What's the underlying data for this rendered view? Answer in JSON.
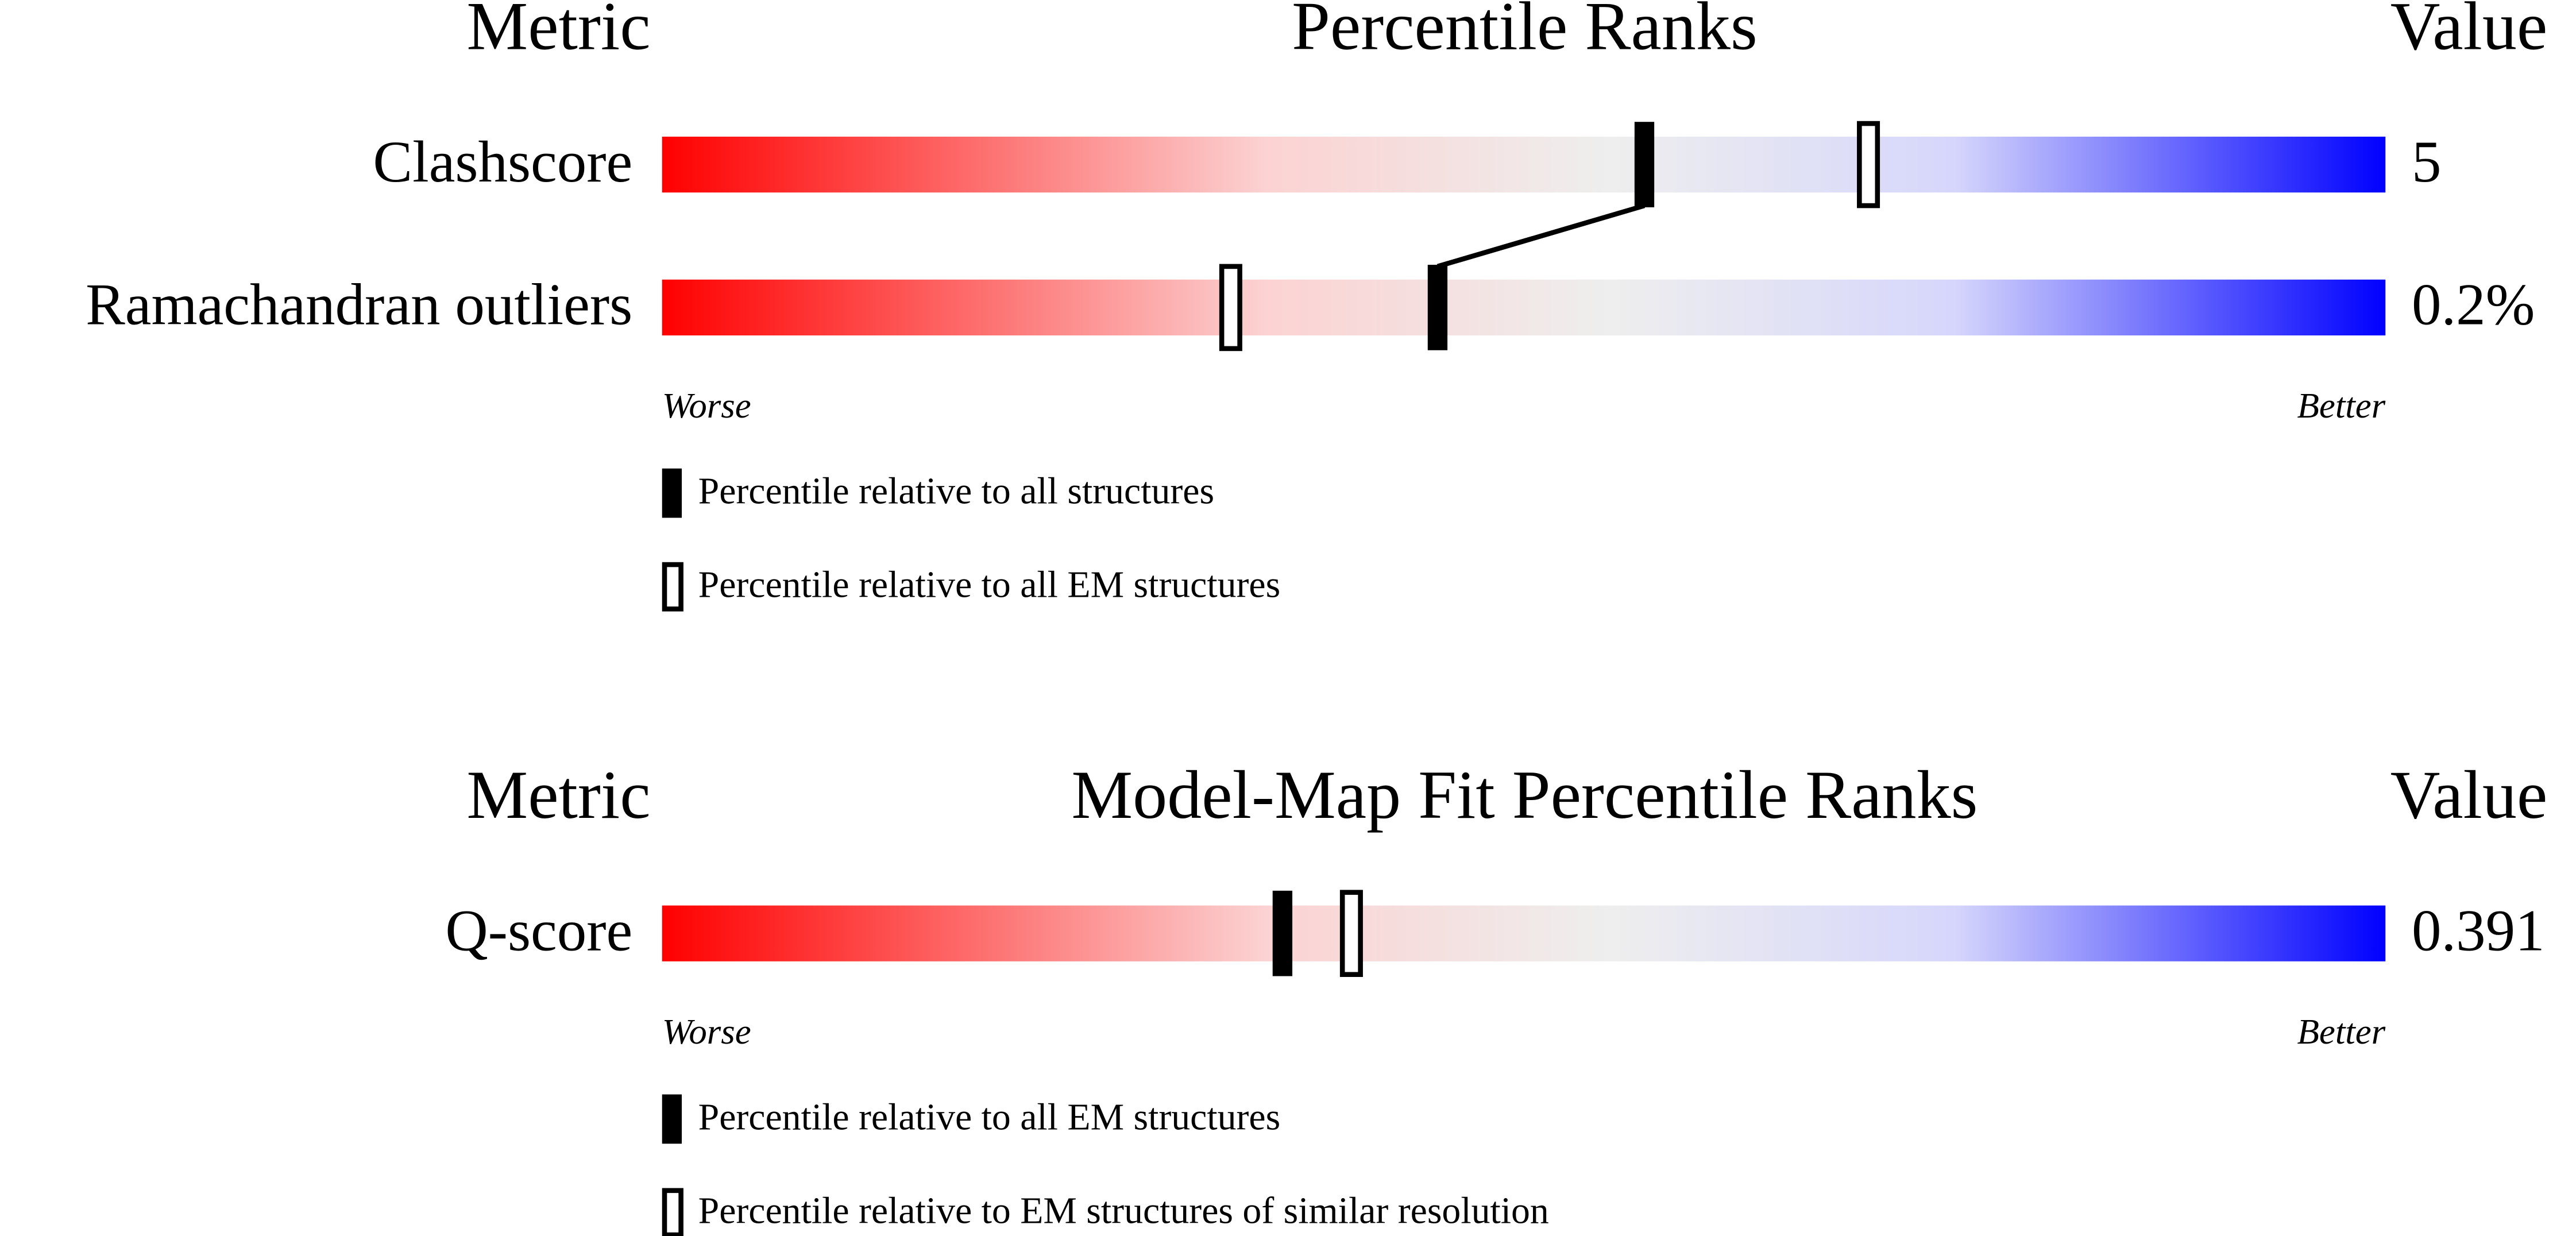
{
  "chart_data": [
    {
      "type": "percentile_slider",
      "title": "Percentile Ranks",
      "metric_header": "Metric",
      "value_header": "Value",
      "categories": [
        "Clashscore",
        "Ramachandran outliers"
      ],
      "metric_values": [
        "5",
        "0.2%"
      ],
      "series": [
        {
          "name": "Percentile relative to all structures",
          "style": "filled",
          "color": "#000000",
          "values": [
            57,
            45
          ]
        },
        {
          "name": "Percentile relative to all EM structures",
          "style": "outline",
          "color": "#000000",
          "values": [
            70,
            33
          ]
        }
      ],
      "xlim": [
        0,
        100
      ],
      "low_label": "Worse",
      "high_label": "Better",
      "connector": true
    },
    {
      "type": "percentile_slider",
      "title": "Model-Map Fit Percentile Ranks",
      "metric_header": "Metric",
      "value_header": "Value",
      "categories": [
        "Q-score"
      ],
      "metric_values": [
        "0.391"
      ],
      "series": [
        {
          "name": "Percentile relative to all EM structures",
          "style": "filled",
          "color": "#000000",
          "values": [
            36
          ]
        },
        {
          "name": "Percentile relative to EM structures of similar resolution",
          "style": "outline",
          "color": "#000000",
          "values": [
            40
          ]
        }
      ],
      "xlim": [
        0,
        100
      ],
      "low_label": "Worse",
      "high_label": "Better",
      "connector": false
    }
  ]
}
